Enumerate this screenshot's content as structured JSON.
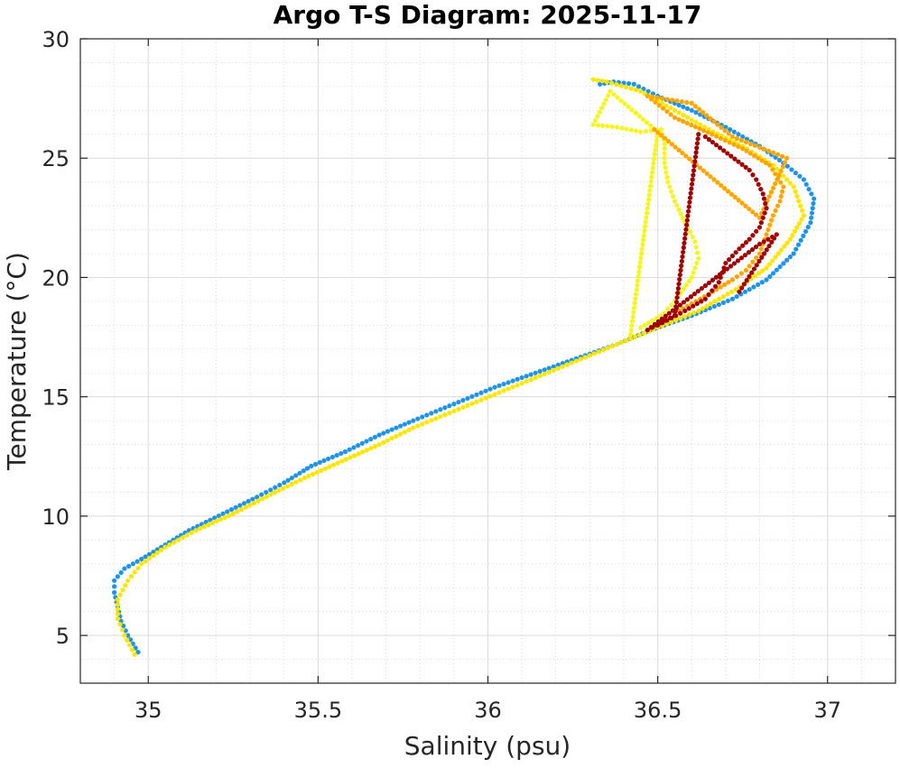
{
  "chart_data": {
    "type": "scatter",
    "title": "Argo T-S Diagram: 2025-11-17",
    "xlabel": "Salinity (psu)",
    "ylabel": "Temperature (°C)",
    "xlim": [
      34.8,
      37.2
    ],
    "ylim": [
      3,
      30
    ],
    "xticks": [
      35,
      35.5,
      36,
      36.5,
      37
    ],
    "xtick_labels": [
      "35",
      "35.5",
      "36",
      "36.5",
      "37"
    ],
    "yticks": [
      5,
      10,
      15,
      20,
      25,
      30
    ],
    "ytick_labels": [
      "5",
      "10",
      "15",
      "20",
      "25",
      "30"
    ],
    "grid": true,
    "minor_grid": true,
    "legend": "none",
    "series": [
      {
        "color": "#1f94e6",
        "points": [
          [
            34.97,
            4.3
          ],
          [
            34.94,
            5.0
          ],
          [
            34.92,
            5.6
          ],
          [
            34.91,
            6.2
          ],
          [
            34.9,
            6.8
          ],
          [
            34.9,
            7.3
          ],
          [
            34.93,
            7.8
          ],
          [
            34.98,
            8.2
          ],
          [
            35.05,
            8.8
          ],
          [
            35.12,
            9.4
          ],
          [
            35.22,
            10.1
          ],
          [
            35.32,
            10.8
          ],
          [
            35.4,
            11.4
          ],
          [
            35.48,
            12.1
          ],
          [
            35.58,
            12.7
          ],
          [
            35.68,
            13.4
          ],
          [
            35.78,
            14.0
          ],
          [
            35.9,
            14.7
          ],
          [
            36.02,
            15.4
          ],
          [
            36.14,
            16.0
          ],
          [
            36.26,
            16.6
          ],
          [
            36.38,
            17.2
          ],
          [
            36.48,
            17.8
          ],
          [
            36.6,
            18.4
          ],
          [
            36.72,
            19.1
          ],
          [
            36.82,
            19.9
          ],
          [
            36.9,
            21.0
          ],
          [
            36.95,
            22.3
          ],
          [
            36.96,
            23.3
          ],
          [
            36.93,
            24.1
          ],
          [
            36.87,
            24.8
          ],
          [
            36.8,
            25.5
          ],
          [
            36.7,
            26.3
          ],
          [
            36.6,
            27.0
          ],
          [
            36.5,
            27.6
          ],
          [
            36.43,
            28.1
          ],
          [
            36.37,
            28.2
          ],
          [
            36.33,
            28.1
          ]
        ]
      },
      {
        "color": "#ffe600",
        "points": [
          [
            34.96,
            4.2
          ],
          [
            34.93,
            5.0
          ],
          [
            34.91,
            5.7
          ],
          [
            34.91,
            6.5
          ],
          [
            34.94,
            7.3
          ],
          [
            34.98,
            8.0
          ],
          [
            35.05,
            8.7
          ],
          [
            35.14,
            9.4
          ],
          [
            35.25,
            10.1
          ],
          [
            35.36,
            10.9
          ],
          [
            35.46,
            11.6
          ],
          [
            35.57,
            12.3
          ],
          [
            35.68,
            13.0
          ],
          [
            35.78,
            13.7
          ],
          [
            35.9,
            14.4
          ],
          [
            36.02,
            15.1
          ],
          [
            36.14,
            15.8
          ],
          [
            36.26,
            16.5
          ],
          [
            36.38,
            17.2
          ],
          [
            36.5,
            17.9
          ],
          [
            36.62,
            18.6
          ],
          [
            36.73,
            19.5
          ],
          [
            36.82,
            20.4
          ],
          [
            36.89,
            21.6
          ],
          [
            36.93,
            22.6
          ],
          [
            36.9,
            23.8
          ],
          [
            36.84,
            24.7
          ],
          [
            36.75,
            25.5
          ],
          [
            36.65,
            26.2
          ],
          [
            36.55,
            27.0
          ],
          [
            36.45,
            27.8
          ],
          [
            36.35,
            28.2
          ],
          [
            36.31,
            28.3
          ]
        ]
      },
      {
        "color": "#f5f522",
        "points": [
          [
            36.45,
            17.9
          ],
          [
            36.52,
            18.5
          ],
          [
            36.56,
            19.2
          ],
          [
            36.6,
            20.0
          ],
          [
            36.62,
            20.8
          ],
          [
            36.61,
            21.5
          ],
          [
            36.58,
            22.3
          ],
          [
            36.55,
            23.2
          ],
          [
            36.53,
            24.0
          ],
          [
            36.52,
            24.8
          ],
          [
            36.52,
            25.6
          ],
          [
            36.51,
            26.2
          ],
          [
            36.45,
            26.1
          ],
          [
            36.38,
            26.3
          ],
          [
            36.31,
            26.4
          ],
          [
            36.36,
            27.8
          ],
          [
            36.5,
            26.1
          ],
          [
            36.42,
            17.6
          ]
        ]
      },
      {
        "color": "#ffa500",
        "points": [
          [
            36.55,
            18.5
          ],
          [
            36.65,
            19.3
          ],
          [
            36.72,
            19.9
          ],
          [
            36.76,
            20.3
          ],
          [
            36.8,
            21.0
          ],
          [
            36.82,
            21.8
          ],
          [
            36.84,
            22.6
          ],
          [
            36.86,
            23.2
          ],
          [
            36.87,
            23.8
          ],
          [
            36.83,
            24.7
          ],
          [
            36.75,
            25.4
          ],
          [
            36.66,
            26.0
          ],
          [
            36.55,
            26.7
          ],
          [
            36.47,
            27.6
          ],
          [
            36.6,
            27.3
          ],
          [
            36.72,
            25.9
          ],
          [
            36.88,
            25.0
          ],
          [
            36.8,
            22.5
          ],
          [
            36.49,
            26.2
          ]
        ]
      },
      {
        "color": "#a00000",
        "points": [
          [
            36.5,
            18.0
          ],
          [
            36.58,
            18.6
          ],
          [
            36.64,
            19.1
          ],
          [
            36.68,
            19.8
          ],
          [
            36.7,
            20.6
          ],
          [
            36.74,
            21.2
          ],
          [
            36.77,
            21.6
          ],
          [
            36.8,
            22.1
          ],
          [
            36.82,
            22.9
          ],
          [
            36.81,
            23.5
          ],
          [
            36.79,
            24.1
          ],
          [
            36.77,
            24.5
          ],
          [
            36.64,
            25.9
          ],
          [
            36.62,
            26.0
          ],
          [
            36.55,
            18.4
          ],
          [
            36.47,
            17.8
          ],
          [
            36.8,
            21.4
          ],
          [
            36.85,
            21.8
          ],
          [
            36.74,
            19.4
          ]
        ]
      }
    ]
  }
}
